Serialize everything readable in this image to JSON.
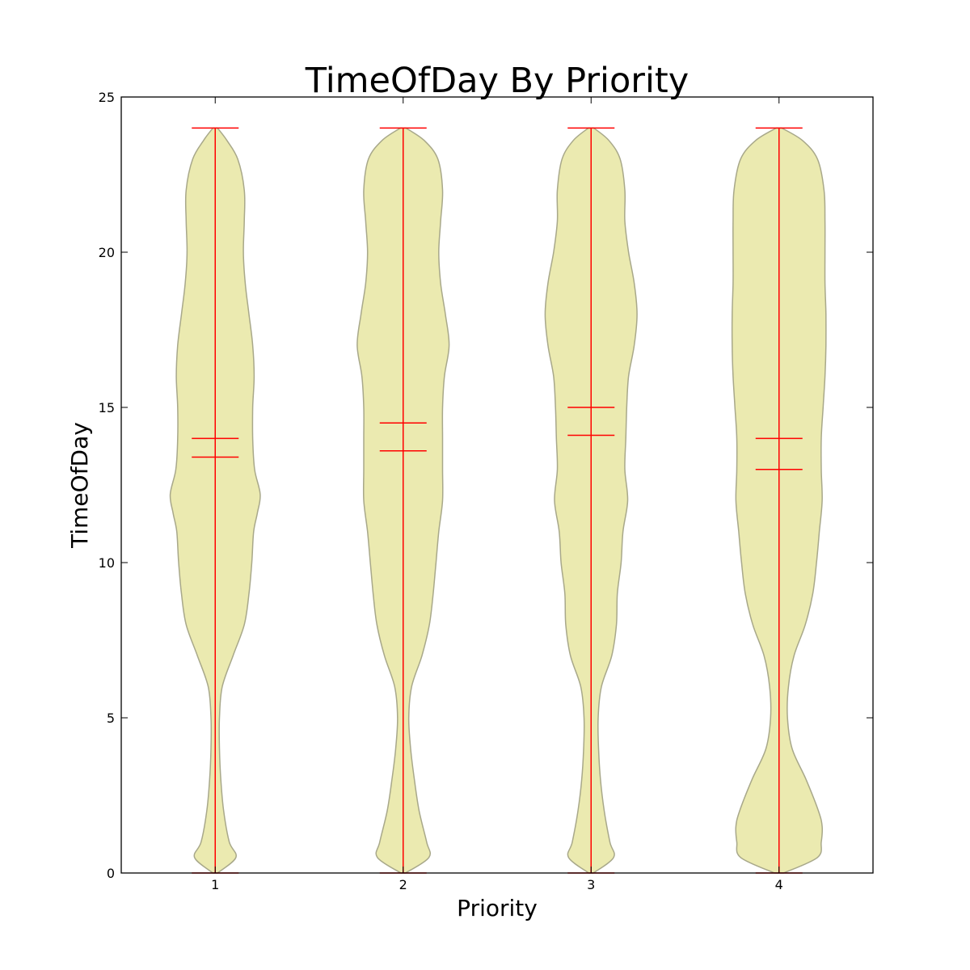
{
  "chart_data": {
    "type": "violin",
    "title": "TimeOfDay By Priority",
    "xlabel": "Priority",
    "ylabel": "TimeOfDay",
    "ylim": [
      0,
      25
    ],
    "yticks": [
      "0",
      "5",
      "10",
      "15",
      "20",
      "25"
    ],
    "grid": false,
    "colors": {
      "violin_fill": "#ebeab0",
      "violin_edge": "#a8a88a",
      "stat_lines": "#ff0000",
      "axis": "#000000"
    },
    "categories": [
      "1",
      "2",
      "3",
      "4"
    ],
    "violins": [
      {
        "category": "1",
        "min": 0.0,
        "max": 24.0,
        "mean": 14.0,
        "median": 13.4,
        "density": [
          [
            0.0,
            0.05
          ],
          [
            0.5,
            0.44
          ],
          [
            1.0,
            0.3
          ],
          [
            2.0,
            0.18
          ],
          [
            3.0,
            0.12
          ],
          [
            4.0,
            0.09
          ],
          [
            5.0,
            0.09
          ],
          [
            6.0,
            0.15
          ],
          [
            7.0,
            0.38
          ],
          [
            8.0,
            0.62
          ],
          [
            9.0,
            0.72
          ],
          [
            10.0,
            0.78
          ],
          [
            11.0,
            0.82
          ],
          [
            11.6,
            0.9
          ],
          [
            12.2,
            0.96
          ],
          [
            13.0,
            0.84
          ],
          [
            14.0,
            0.8
          ],
          [
            15.0,
            0.8
          ],
          [
            16.0,
            0.83
          ],
          [
            17.0,
            0.8
          ],
          [
            18.0,
            0.72
          ],
          [
            19.0,
            0.64
          ],
          [
            20.0,
            0.6
          ],
          [
            21.0,
            0.62
          ],
          [
            22.0,
            0.62
          ],
          [
            23.0,
            0.48
          ],
          [
            23.6,
            0.25
          ],
          [
            24.0,
            0.05
          ]
        ]
      },
      {
        "category": "2",
        "min": 0.0,
        "max": 24.0,
        "mean": 14.5,
        "median": 13.6,
        "density": [
          [
            0.0,
            0.05
          ],
          [
            0.5,
            0.55
          ],
          [
            1.0,
            0.5
          ],
          [
            2.0,
            0.34
          ],
          [
            3.0,
            0.24
          ],
          [
            4.0,
            0.16
          ],
          [
            5.0,
            0.12
          ],
          [
            6.0,
            0.18
          ],
          [
            7.0,
            0.4
          ],
          [
            8.0,
            0.56
          ],
          [
            9.0,
            0.64
          ],
          [
            10.0,
            0.7
          ],
          [
            11.0,
            0.76
          ],
          [
            12.0,
            0.84
          ],
          [
            13.0,
            0.84
          ],
          [
            14.0,
            0.84
          ],
          [
            15.0,
            0.84
          ],
          [
            16.0,
            0.88
          ],
          [
            17.0,
            0.98
          ],
          [
            18.0,
            0.9
          ],
          [
            19.0,
            0.8
          ],
          [
            20.0,
            0.76
          ],
          [
            21.0,
            0.8
          ],
          [
            22.0,
            0.84
          ],
          [
            23.0,
            0.74
          ],
          [
            23.6,
            0.45
          ],
          [
            24.0,
            0.06
          ]
        ]
      },
      {
        "category": "3",
        "min": 0.0,
        "max": 24.0,
        "mean": 15.0,
        "median": 14.1,
        "density": [
          [
            0.0,
            0.05
          ],
          [
            0.5,
            0.48
          ],
          [
            1.0,
            0.4
          ],
          [
            2.0,
            0.28
          ],
          [
            3.0,
            0.2
          ],
          [
            4.0,
            0.16
          ],
          [
            5.0,
            0.15
          ],
          [
            6.0,
            0.22
          ],
          [
            7.0,
            0.44
          ],
          [
            8.0,
            0.54
          ],
          [
            9.0,
            0.56
          ],
          [
            10.0,
            0.64
          ],
          [
            11.0,
            0.68
          ],
          [
            12.0,
            0.78
          ],
          [
            13.0,
            0.72
          ],
          [
            14.0,
            0.74
          ],
          [
            15.0,
            0.76
          ],
          [
            16.0,
            0.8
          ],
          [
            17.0,
            0.92
          ],
          [
            18.0,
            0.98
          ],
          [
            19.0,
            0.92
          ],
          [
            20.0,
            0.8
          ],
          [
            21.0,
            0.72
          ],
          [
            22.0,
            0.72
          ],
          [
            23.0,
            0.62
          ],
          [
            23.6,
            0.38
          ],
          [
            24.0,
            0.06
          ]
        ]
      },
      {
        "category": "4",
        "min": 0.0,
        "max": 24.0,
        "mean": 14.0,
        "median": 13.0,
        "density": [
          [
            0.0,
            0.1
          ],
          [
            0.5,
            0.82
          ],
          [
            1.0,
            0.9
          ],
          [
            1.5,
            0.92
          ],
          [
            2.0,
            0.84
          ],
          [
            3.0,
            0.58
          ],
          [
            4.0,
            0.28
          ],
          [
            5.0,
            0.18
          ],
          [
            6.0,
            0.2
          ],
          [
            7.0,
            0.32
          ],
          [
            8.0,
            0.56
          ],
          [
            9.0,
            0.72
          ],
          [
            10.0,
            0.8
          ],
          [
            11.0,
            0.86
          ],
          [
            12.0,
            0.92
          ],
          [
            13.0,
            0.9
          ],
          [
            14.0,
            0.9
          ],
          [
            15.0,
            0.94
          ],
          [
            16.0,
            0.98
          ],
          [
            17.0,
            1.0
          ],
          [
            18.0,
            1.0
          ],
          [
            19.0,
            0.98
          ],
          [
            20.0,
            0.98
          ],
          [
            21.0,
            0.98
          ],
          [
            22.0,
            0.96
          ],
          [
            23.0,
            0.82
          ],
          [
            23.6,
            0.5
          ],
          [
            24.0,
            0.06
          ]
        ]
      }
    ]
  }
}
